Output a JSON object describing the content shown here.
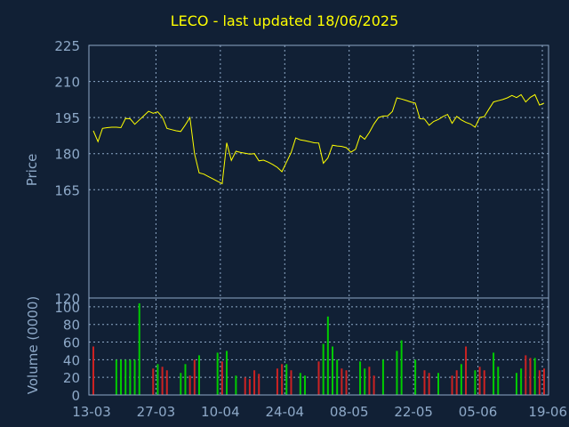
{
  "colors": {
    "background": "#112035",
    "title": "#ffff00",
    "axis_text": "#8ea9c8",
    "grid": "#8ea9c8",
    "price_line": "#ffff00",
    "volume_up": "#00cc00",
    "volume_down": "#cc2222"
  },
  "chart_data": [
    {
      "type": "line",
      "title": "LECO - last updated 18/06/2025",
      "ylabel": "Price",
      "ylim": [
        120,
        225
      ],
      "yticks": [
        120,
        165,
        180,
        195,
        210,
        225
      ],
      "grid": true,
      "x_tick_labels": [
        "13-03",
        "27-03",
        "10-04",
        "24-04",
        "08-05",
        "22-05",
        "05-06",
        "19-06"
      ],
      "series": [
        {
          "values": [
            189.5,
            185.0,
            190.5,
            190.8,
            191.0,
            191.0,
            190.8,
            194.6,
            194.5,
            192.2,
            194.0,
            195.8,
            197.6,
            196.8,
            197.4,
            195.2,
            190.5,
            190.0,
            189.5,
            189.2,
            192.0,
            195.0,
            180.0,
            172.0,
            171.5,
            170.5,
            169.5,
            168.5,
            167.5,
            184.5,
            177.2,
            181.0,
            180.5,
            180.2,
            179.8,
            180.0,
            177.0,
            177.3,
            176.5,
            175.5,
            174.3,
            172.5,
            176.5,
            180.5,
            186.5,
            185.7,
            185.4,
            185.0,
            184.5,
            184.4,
            176.0,
            178.2,
            183.5,
            183.2,
            183.0,
            182.5,
            180.6,
            181.8,
            187.5,
            186.0,
            188.8,
            192.3,
            195.0,
            195.6,
            195.7,
            197.5,
            203.2,
            202.7,
            202.1,
            201.5,
            201.0,
            194.5,
            194.4,
            191.8,
            193.4,
            194.2,
            195.4,
            196.3,
            192.6,
            195.5,
            194.0,
            193.0,
            192.3,
            191.0,
            195.0,
            195.4,
            198.5,
            201.5,
            202.0,
            202.5,
            203.2,
            204.2,
            203.3,
            204.5,
            201.5,
            203.4,
            204.5,
            200.2,
            201.0
          ]
        }
      ]
    },
    {
      "type": "bar",
      "ylabel": "Volume (0000)",
      "ylim": [
        0,
        110
      ],
      "yticks": [
        0,
        20,
        40,
        60,
        80,
        100
      ],
      "grid": true,
      "series": [
        {
          "name": "up",
          "values": [
            0,
            0,
            0,
            0,
            0,
            40,
            40,
            40,
            40,
            40,
            104,
            0,
            0,
            0,
            35,
            0,
            0,
            0,
            0,
            25,
            35,
            0,
            0,
            45,
            0,
            0,
            0,
            48,
            0,
            50,
            0,
            22,
            0,
            0,
            0,
            0,
            0,
            0,
            0,
            0,
            0,
            0,
            35,
            0,
            0,
            25,
            22,
            0,
            0,
            0,
            58,
            89,
            55,
            40,
            0,
            0,
            0,
            0,
            38,
            30,
            0,
            0,
            0,
            40,
            0,
            0,
            50,
            62,
            0,
            0,
            40,
            0,
            0,
            0,
            0,
            25,
            0,
            0,
            0,
            0,
            35,
            0,
            0,
            28,
            0,
            0,
            0,
            48,
            32,
            0,
            0,
            0,
            25,
            30,
            0,
            0,
            42,
            0,
            0
          ]
        },
        {
          "name": "down",
          "values": [
            55,
            0,
            0,
            0,
            0,
            0,
            0,
            0,
            0,
            0,
            0,
            0,
            0,
            30,
            0,
            32,
            28,
            0,
            0,
            0,
            0,
            22,
            40,
            0,
            0,
            0,
            0,
            0,
            38,
            0,
            0,
            0,
            0,
            20,
            18,
            28,
            24,
            0,
            0,
            0,
            30,
            35,
            0,
            28,
            0,
            0,
            0,
            0,
            0,
            38,
            0,
            0,
            0,
            0,
            30,
            28,
            0,
            0,
            0,
            0,
            32,
            22,
            0,
            0,
            0,
            0,
            0,
            0,
            0,
            0,
            0,
            0,
            28,
            25,
            0,
            0,
            0,
            0,
            22,
            28,
            0,
            55,
            0,
            0,
            32,
            28,
            0,
            0,
            0,
            0,
            0,
            0,
            0,
            0,
            45,
            42,
            0,
            28,
            30
          ]
        }
      ]
    }
  ]
}
